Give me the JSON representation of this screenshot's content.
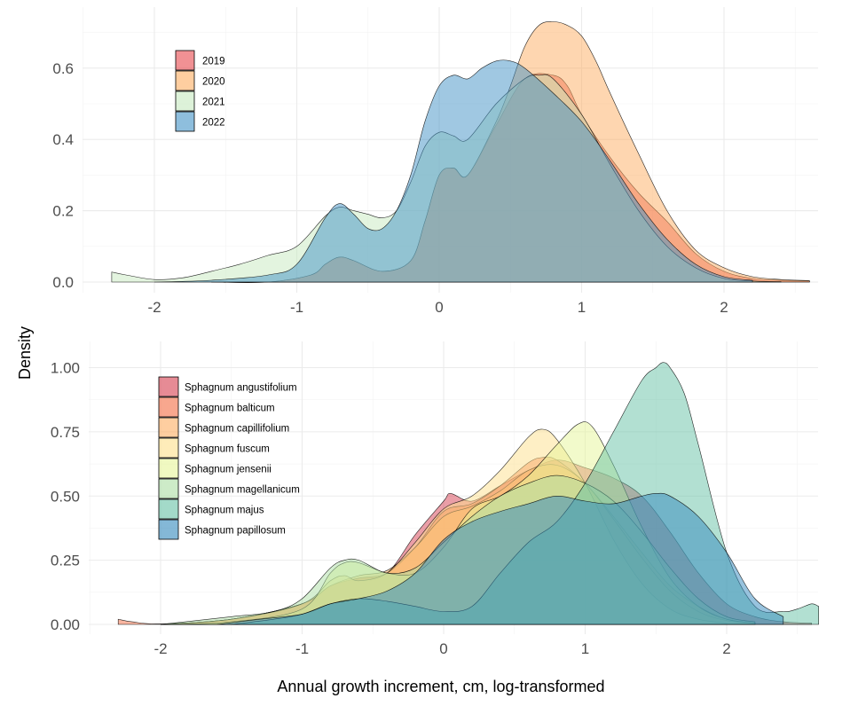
{
  "ylabel": "Density",
  "xlabel": "Annual growth increment, cm, log-transformed",
  "chart_data": [
    {
      "type": "area",
      "title": "",
      "xlabel": "Annual growth increment, cm, log-transformed",
      "ylabel": "Density",
      "xlim": [
        -2.4,
        2.7
      ],
      "ylim": [
        0,
        0.75
      ],
      "x_ticks": [
        -2,
        -1,
        0,
        1,
        2
      ],
      "x_tick_labels": [
        "-2",
        "-1",
        "0",
        "1",
        "2"
      ],
      "y_ticks": [
        0,
        0.2,
        0.4,
        0.6
      ],
      "y_tick_labels": [
        "0.0",
        "0.2",
        "0.4",
        "0.6"
      ],
      "grid": true,
      "legend_position": "top-left",
      "series": [
        {
          "name": "2019",
          "color": "#E8474C",
          "x": [
            -1.6,
            -1.2,
            -0.9,
            -0.8,
            -0.7,
            -0.6,
            -0.4,
            -0.2,
            -0.1,
            0.0,
            0.1,
            0.2,
            0.4,
            0.6,
            0.8,
            0.9,
            1.0,
            1.2,
            1.4,
            1.6,
            1.8,
            2.0,
            2.2,
            2.4,
            2.6
          ],
          "y": [
            0.0,
            0.0,
            0.02,
            0.05,
            0.07,
            0.06,
            0.03,
            0.06,
            0.17,
            0.3,
            0.32,
            0.3,
            0.44,
            0.57,
            0.58,
            0.55,
            0.47,
            0.35,
            0.25,
            0.17,
            0.08,
            0.03,
            0.01,
            0.005,
            0.003
          ]
        },
        {
          "name": "2020",
          "color": "#FDAE61",
          "x": [
            -1.6,
            -1.2,
            -0.9,
            -0.8,
            -0.7,
            -0.6,
            -0.4,
            -0.2,
            -0.1,
            0.0,
            0.1,
            0.2,
            0.4,
            0.5,
            0.6,
            0.7,
            0.8,
            0.9,
            1.0,
            1.1,
            1.2,
            1.4,
            1.6,
            1.8,
            2.0,
            2.2,
            2.4,
            2.6
          ],
          "y": [
            0.0,
            0.0,
            0.02,
            0.05,
            0.07,
            0.06,
            0.03,
            0.06,
            0.17,
            0.3,
            0.32,
            0.3,
            0.45,
            0.55,
            0.66,
            0.72,
            0.73,
            0.72,
            0.69,
            0.62,
            0.53,
            0.36,
            0.2,
            0.09,
            0.04,
            0.015,
            0.007,
            0.004
          ]
        },
        {
          "name": "2021",
          "color": "#C7E9C0",
          "x": [
            -2.3,
            -2.2,
            -2.0,
            -1.8,
            -1.6,
            -1.4,
            -1.2,
            -1.0,
            -0.8,
            -0.7,
            -0.6,
            -0.5,
            -0.4,
            -0.3,
            -0.2,
            -0.1,
            0.0,
            0.1,
            0.2,
            0.4,
            0.6,
            0.7,
            0.8,
            1.0,
            1.2,
            1.4,
            1.6,
            1.8,
            2.0,
            2.2,
            2.4
          ],
          "y": [
            0.028,
            0.02,
            0.007,
            0.012,
            0.03,
            0.05,
            0.075,
            0.1,
            0.185,
            0.21,
            0.2,
            0.19,
            0.18,
            0.2,
            0.28,
            0.38,
            0.42,
            0.41,
            0.4,
            0.5,
            0.57,
            0.58,
            0.57,
            0.47,
            0.33,
            0.2,
            0.1,
            0.04,
            0.01,
            0.003,
            0.001
          ]
        },
        {
          "name": "2022",
          "color": "#4292C6",
          "x": [
            -2.0,
            -1.6,
            -1.2,
            -1.0,
            -0.8,
            -0.7,
            -0.6,
            -0.5,
            -0.4,
            -0.3,
            -0.2,
            -0.1,
            0.0,
            0.1,
            0.2,
            0.3,
            0.4,
            0.5,
            0.6,
            0.8,
            1.0,
            1.2,
            1.4,
            1.6,
            1.8,
            2.0,
            2.2
          ],
          "y": [
            0.0,
            0.005,
            0.02,
            0.05,
            0.18,
            0.22,
            0.19,
            0.15,
            0.15,
            0.2,
            0.3,
            0.45,
            0.55,
            0.58,
            0.57,
            0.6,
            0.62,
            0.62,
            0.6,
            0.53,
            0.45,
            0.34,
            0.22,
            0.12,
            0.05,
            0.015,
            0.005
          ]
        }
      ]
    },
    {
      "type": "area",
      "title": "",
      "xlabel": "Annual growth increment, cm, log-transformed",
      "ylabel": "Density",
      "xlim": [
        -2.4,
        2.7
      ],
      "ylim": [
        0,
        1.05
      ],
      "x_ticks": [
        -2,
        -1,
        0,
        1,
        2
      ],
      "x_tick_labels": [
        "-2",
        "-1",
        "0",
        "1",
        "2"
      ],
      "y_ticks": [
        0,
        0.25,
        0.5,
        0.75,
        1.0
      ],
      "y_tick_labels": [
        "0.00",
        "0.25",
        "0.50",
        "0.75",
        "1.00"
      ],
      "grid": true,
      "legend_position": "top-left",
      "series": [
        {
          "name": "Sphagnum angustifolium",
          "color": "#D53E4F",
          "x": [
            -2.0,
            -1.5,
            -1.0,
            -0.8,
            -0.6,
            -0.4,
            -0.2,
            0.0,
            0.05,
            0.2,
            0.4,
            0.6,
            0.8,
            1.0,
            1.2,
            1.4,
            1.6,
            1.8,
            2.0,
            2.2,
            2.4,
            2.6
          ],
          "y": [
            0.0,
            0.02,
            0.08,
            0.15,
            0.18,
            0.2,
            0.35,
            0.48,
            0.51,
            0.48,
            0.54,
            0.6,
            0.64,
            0.61,
            0.57,
            0.5,
            0.36,
            0.2,
            0.08,
            0.03,
            0.01,
            0.005
          ]
        },
        {
          "name": "Sphagnum balticum",
          "color": "#F46D43",
          "x": [
            -2.3,
            -2.2,
            -2.0,
            -1.5,
            -1.0,
            -0.8,
            -0.6,
            -0.4,
            -0.2,
            0.0,
            0.2,
            0.4,
            0.6,
            0.7,
            0.8,
            1.0,
            1.2,
            1.4,
            1.6,
            1.8,
            2.0,
            2.2
          ],
          "y": [
            0.02,
            0.01,
            0.002,
            0.02,
            0.08,
            0.15,
            0.18,
            0.2,
            0.3,
            0.44,
            0.47,
            0.54,
            0.63,
            0.65,
            0.64,
            0.55,
            0.42,
            0.28,
            0.15,
            0.07,
            0.02,
            0.005
          ]
        },
        {
          "name": "Sphagnum capillifolium",
          "color": "#FDAE61",
          "x": [
            -2.0,
            -1.5,
            -1.0,
            -0.8,
            -0.6,
            -0.4,
            -0.2,
            0.0,
            0.2,
            0.4,
            0.6,
            0.8,
            1.0,
            1.2,
            1.4,
            1.6,
            1.8,
            2.0,
            2.2
          ],
          "y": [
            0.0,
            0.02,
            0.08,
            0.15,
            0.19,
            0.21,
            0.3,
            0.42,
            0.46,
            0.52,
            0.6,
            0.62,
            0.55,
            0.41,
            0.26,
            0.13,
            0.05,
            0.015,
            0.005
          ]
        },
        {
          "name": "Sphagnum fuscum",
          "color": "#FEE08B",
          "x": [
            -2.0,
            -1.5,
            -1.0,
            -0.8,
            -0.7,
            -0.6,
            -0.4,
            -0.2,
            0.0,
            0.2,
            0.4,
            0.6,
            0.7,
            0.8,
            1.0,
            1.2,
            1.4,
            1.6,
            1.8,
            2.0
          ],
          "y": [
            0.0,
            0.02,
            0.08,
            0.17,
            0.19,
            0.17,
            0.2,
            0.32,
            0.45,
            0.5,
            0.6,
            0.73,
            0.76,
            0.72,
            0.55,
            0.33,
            0.16,
            0.06,
            0.02,
            0.005
          ]
        },
        {
          "name": "Sphagnum jensenii",
          "color": "#E6F598",
          "x": [
            -2.0,
            -1.5,
            -1.0,
            -0.8,
            -0.7,
            -0.6,
            -0.4,
            -0.2,
            0.0,
            0.2,
            0.4,
            0.6,
            0.8,
            0.95,
            1.05,
            1.2,
            1.4,
            1.6,
            1.8,
            2.0,
            2.2
          ],
          "y": [
            0.0,
            0.01,
            0.06,
            0.2,
            0.24,
            0.24,
            0.2,
            0.2,
            0.3,
            0.45,
            0.5,
            0.58,
            0.7,
            0.78,
            0.77,
            0.62,
            0.38,
            0.18,
            0.07,
            0.02,
            0.005
          ]
        },
        {
          "name": "Sphagnum magellanicum",
          "color": "#ABDDA4",
          "x": [
            -2.0,
            -1.5,
            -1.2,
            -1.0,
            -0.8,
            -0.7,
            -0.6,
            -0.4,
            -0.2,
            0.0,
            0.2,
            0.4,
            0.6,
            0.8,
            1.0,
            1.2,
            1.4,
            1.6,
            1.8,
            2.0,
            2.2
          ],
          "y": [
            0.0,
            0.03,
            0.05,
            0.1,
            0.22,
            0.25,
            0.25,
            0.2,
            0.22,
            0.32,
            0.42,
            0.5,
            0.55,
            0.58,
            0.55,
            0.48,
            0.36,
            0.22,
            0.1,
            0.03,
            0.01
          ]
        },
        {
          "name": "Sphagnum majus",
          "color": "#66C2A5",
          "x": [
            -1.5,
            -1.2,
            -1.0,
            -0.8,
            -0.6,
            -0.4,
            -0.2,
            0.0,
            0.2,
            0.4,
            0.6,
            0.8,
            1.0,
            1.2,
            1.4,
            1.5,
            1.55,
            1.6,
            1.7,
            1.8,
            2.0,
            2.2,
            2.4,
            2.5,
            2.6,
            2.65
          ],
          "y": [
            0.0,
            0.02,
            0.04,
            0.08,
            0.1,
            0.09,
            0.07,
            0.05,
            0.07,
            0.2,
            0.32,
            0.4,
            0.55,
            0.75,
            0.95,
            1.0,
            1.02,
            1.0,
            0.9,
            0.7,
            0.28,
            0.07,
            0.05,
            0.06,
            0.08,
            0.07
          ]
        },
        {
          "name": "Sphagnum papillosum",
          "color": "#3288BD",
          "x": [
            -1.6,
            -1.3,
            -1.0,
            -0.8,
            -0.6,
            -0.4,
            -0.2,
            0.0,
            0.2,
            0.4,
            0.6,
            0.8,
            1.0,
            1.2,
            1.4,
            1.5,
            1.6,
            1.8,
            2.0,
            2.2,
            2.4
          ],
          "y": [
            0.0,
            0.02,
            0.04,
            0.08,
            0.1,
            0.13,
            0.2,
            0.33,
            0.4,
            0.44,
            0.47,
            0.5,
            0.48,
            0.47,
            0.5,
            0.51,
            0.5,
            0.42,
            0.28,
            0.1,
            0.03
          ]
        }
      ]
    }
  ]
}
